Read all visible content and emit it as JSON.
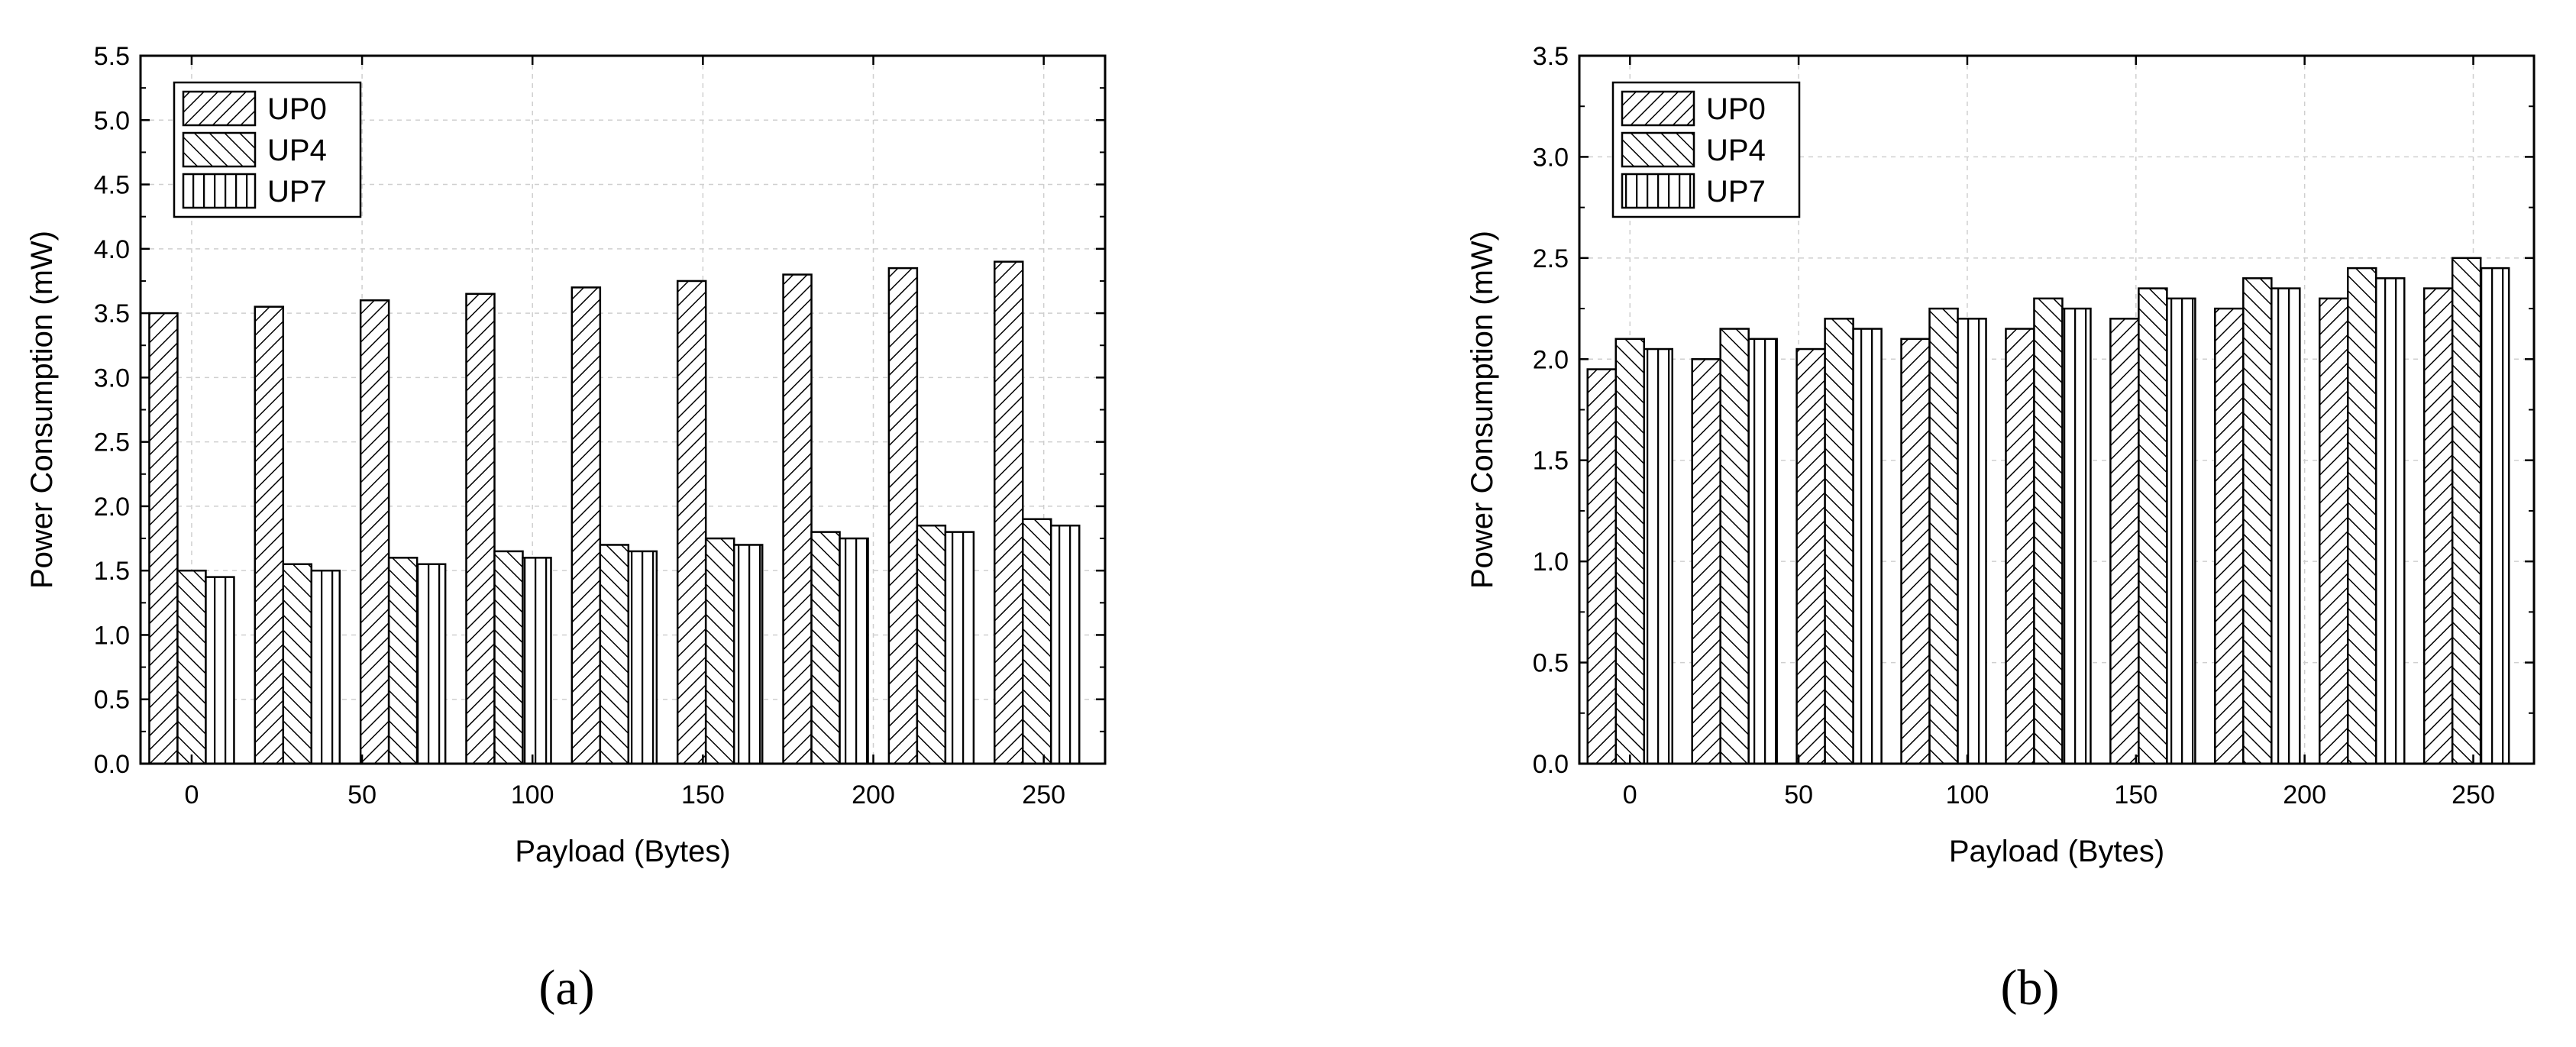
{
  "chart_data": [
    {
      "type": "bar",
      "panel_label": "(a)",
      "xlabel": "Payload (Bytes)",
      "ylabel": "Power Consumption (mW)",
      "x_ticks": [
        0,
        50,
        100,
        150,
        200,
        250
      ],
      "x": [
        0,
        31,
        62,
        93,
        124,
        155,
        186,
        217,
        248
      ],
      "xlim": [
        -15,
        268
      ],
      "ylim": [
        0,
        5.5
      ],
      "y_ticks": [
        "0.0",
        "0.5",
        "1.0",
        "1.5",
        "2.0",
        "2.5",
        "3.0",
        "3.5",
        "4.0",
        "4.5",
        "5.0",
        "5.5"
      ],
      "grid": true,
      "legend_position": "top-left",
      "series": [
        {
          "name": "UP0",
          "pattern": "hatch-forward",
          "values": [
            3.5,
            3.55,
            3.6,
            3.65,
            3.7,
            3.75,
            3.8,
            3.85,
            3.9
          ]
        },
        {
          "name": "UP4",
          "pattern": "hatch-backward",
          "values": [
            1.5,
            1.55,
            1.6,
            1.65,
            1.7,
            1.75,
            1.8,
            1.85,
            1.9
          ]
        },
        {
          "name": "UP7",
          "pattern": "vertical-lines",
          "values": [
            1.45,
            1.5,
            1.55,
            1.6,
            1.65,
            1.7,
            1.75,
            1.8,
            1.85
          ]
        }
      ]
    },
    {
      "type": "bar",
      "panel_label": "(b)",
      "xlabel": "Payload (Bytes)",
      "ylabel": "Power Consumption (mW)",
      "x_ticks": [
        0,
        50,
        100,
        150,
        200,
        250
      ],
      "x": [
        0,
        31,
        62,
        93,
        124,
        155,
        186,
        217,
        248
      ],
      "xlim": [
        -15,
        268
      ],
      "ylim": [
        0,
        3.5
      ],
      "y_ticks": [
        "0.0",
        "0.5",
        "1.0",
        "1.5",
        "2.0",
        "2.5",
        "3.0",
        "3.5"
      ],
      "grid": true,
      "legend_position": "top-left",
      "series": [
        {
          "name": "UP0",
          "pattern": "hatch-forward",
          "values": [
            1.95,
            2.0,
            2.05,
            2.1,
            2.15,
            2.2,
            2.25,
            2.3,
            2.35
          ]
        },
        {
          "name": "UP4",
          "pattern": "hatch-backward",
          "values": [
            2.1,
            2.15,
            2.2,
            2.25,
            2.3,
            2.35,
            2.4,
            2.45,
            2.5
          ]
        },
        {
          "name": "UP7",
          "pattern": "vertical-lines",
          "values": [
            2.05,
            2.1,
            2.15,
            2.2,
            2.25,
            2.3,
            2.35,
            2.4,
            2.45
          ]
        }
      ]
    }
  ]
}
